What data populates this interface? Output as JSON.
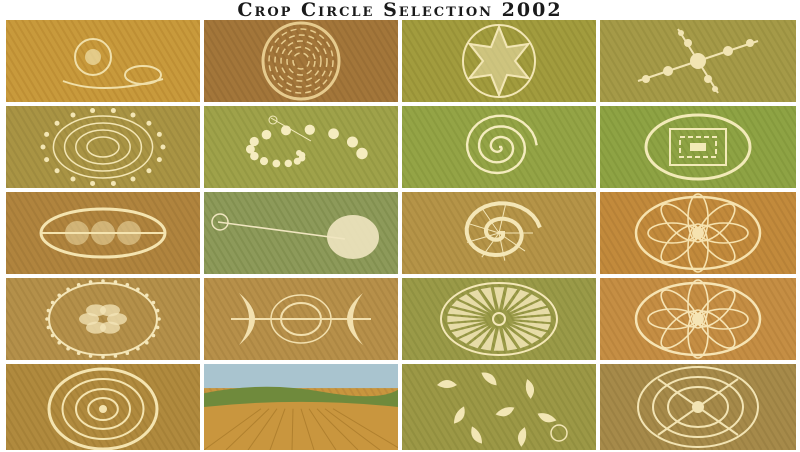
{
  "title": "Crop Circle Selection 2002",
  "tiles": [
    {
      "name": "tile-r1c1",
      "bg": "#c89a3c",
      "stripe": "#b88830",
      "pattern": "swirl-corner",
      "ink": "#f0dfa8"
    },
    {
      "name": "tile-r1c2",
      "bg": "#a3763a",
      "stripe": "#946a32",
      "pattern": "maze",
      "ink": "#e6cb8e"
    },
    {
      "name": "tile-r1c3",
      "bg": "#a29c3e",
      "stripe": "#928c34",
      "pattern": "star",
      "ink": "#f2e6b4"
    },
    {
      "name": "tile-r1c4",
      "bg": "#a59a48",
      "stripe": "#968c3e",
      "pattern": "cross",
      "ink": "#f1e4b2"
    },
    {
      "name": "tile-r2c1",
      "bg": "#a99444",
      "stripe": "#9a863c",
      "pattern": "spiral-ring",
      "ink": "#f3e6b4"
    },
    {
      "name": "tile-r2c2",
      "bg": "#9fa24a",
      "stripe": "#909440",
      "pattern": "spiral-arm",
      "ink": "#f5ecbe"
    },
    {
      "name": "tile-r2c3",
      "bg": "#94a446",
      "stripe": "#86963c",
      "pattern": "spiral",
      "ink": "#f4ecbe"
    },
    {
      "name": "tile-r2c4",
      "bg": "#8ea344",
      "stripe": "#80953a",
      "pattern": "square-maze",
      "ink": "#f2eab8"
    },
    {
      "name": "tile-r3c1",
      "bg": "#b0843e",
      "stripe": "#a07836",
      "pattern": "lens",
      "ink": "#f4e4b0"
    },
    {
      "name": "tile-r3c2",
      "bg": "#8d9a5a",
      "stripe": "#7c8a4a",
      "pattern": "disc-line",
      "ink": "#f0e6c0"
    },
    {
      "name": "tile-r3c3",
      "bg": "#b59448",
      "stripe": "#a6863e",
      "pattern": "nautilus",
      "ink": "#f4e6b6"
    },
    {
      "name": "tile-r3c4",
      "bg": "#c28a3c",
      "stripe": "#b07c34",
      "pattern": "flower",
      "ink": "#f6e2ae"
    },
    {
      "name": "tile-r4c1",
      "bg": "#b4904a",
      "stripe": "#a48240",
      "pattern": "mandala",
      "ink": "#f4e6b8"
    },
    {
      "name": "tile-r4c2",
      "bg": "#b7904a",
      "stripe": "#a78240",
      "pattern": "crescents",
      "ink": "#f2e0ae"
    },
    {
      "name": "tile-r4c3",
      "bg": "#9a9a48",
      "stripe": "#8a8c3e",
      "pattern": "sunburst",
      "ink": "#f4e8b8"
    },
    {
      "name": "tile-r4c4",
      "bg": "#c58e44",
      "stripe": "#b5803a",
      "pattern": "flower",
      "ink": "#f6e4b4"
    },
    {
      "name": "tile-r5c1",
      "bg": "#b08a3e",
      "stripe": "#a07c34",
      "pattern": "rings",
      "ink": "#f4e4b0"
    },
    {
      "name": "tile-r5c2",
      "bg": "#c9963e",
      "stripe": "#b8873a",
      "pattern": "landscape",
      "ink": "#f2dfa6"
    },
    {
      "name": "tile-r5c3",
      "bg": "#9c9846",
      "stripe": "#8c8a3c",
      "pattern": "scatter",
      "ink": "#f2e6b4"
    },
    {
      "name": "tile-r5c4",
      "bg": "#a68a4a",
      "stripe": "#967c40",
      "pattern": "celtic",
      "ink": "#f2e4b4"
    }
  ]
}
